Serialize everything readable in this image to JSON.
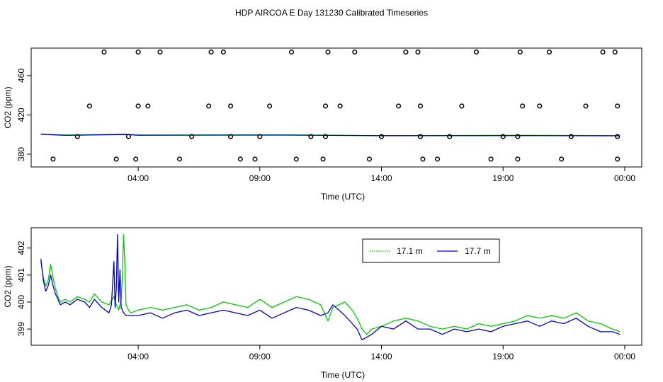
{
  "title": "HDP AIRCOA E  Day 131230  Calibrated Timeseries",
  "colors": {
    "green": "#00cc00",
    "blue": "#0000cc",
    "points": "#000000"
  },
  "chart_data": [
    {
      "type": "scatter",
      "xlabel": "Time (UTC)",
      "ylabel": "CO2 (ppm)",
      "x_ticks": [
        "04:00",
        "09:00",
        "14:00",
        "19:00",
        "00:00"
      ],
      "x_tick_hours": [
        4,
        9,
        14,
        19,
        24
      ],
      "y_ticks": [
        380,
        420,
        460
      ],
      "xlim": [
        -0.4,
        24.7
      ],
      "ylim": [
        367,
        488
      ],
      "grid": false,
      "points": [
        [
          0.5,
          375
        ],
        [
          1.5,
          398
        ],
        [
          2.0,
          429
        ],
        [
          2.6,
          484
        ],
        [
          3.1,
          375
        ],
        [
          3.6,
          398
        ],
        [
          4.0,
          429
        ],
        [
          4.0,
          484
        ],
        [
          3.9,
          375
        ],
        [
          4.9,
          484
        ],
        [
          4.4,
          429
        ],
        [
          5.7,
          375
        ],
        [
          6.2,
          398
        ],
        [
          6.9,
          429
        ],
        [
          7.0,
          484
        ],
        [
          7.5,
          484
        ],
        [
          7.8,
          429
        ],
        [
          7.8,
          398
        ],
        [
          8.2,
          375
        ],
        [
          8.8,
          375
        ],
        [
          9.4,
          429
        ],
        [
          9.0,
          398
        ],
        [
          10.3,
          484
        ],
        [
          10.5,
          375
        ],
        [
          11.1,
          398
        ],
        [
          11.6,
          375
        ],
        [
          11.7,
          398
        ],
        [
          11.7,
          429
        ],
        [
          11.8,
          484
        ],
        [
          12.3,
          429
        ],
        [
          12.9,
          484
        ],
        [
          13.5,
          375
        ],
        [
          14.0,
          398
        ],
        [
          14.7,
          429
        ],
        [
          15.0,
          484
        ],
        [
          15.5,
          484
        ],
        [
          15.7,
          375
        ],
        [
          15.6,
          398
        ],
        [
          15.6,
          429
        ],
        [
          16.3,
          375
        ],
        [
          16.8,
          398
        ],
        [
          17.3,
          429
        ],
        [
          17.9,
          484
        ],
        [
          18.5,
          375
        ],
        [
          19.0,
          398
        ],
        [
          19.6,
          375
        ],
        [
          19.6,
          398
        ],
        [
          19.7,
          484
        ],
        [
          19.8,
          429
        ],
        [
          20.5,
          429
        ],
        [
          20.9,
          484
        ],
        [
          21.4,
          375
        ],
        [
          21.8,
          398
        ],
        [
          22.4,
          429
        ],
        [
          23.1,
          484
        ],
        [
          23.6,
          484
        ],
        [
          23.7,
          429
        ],
        [
          23.7,
          398
        ],
        [
          23.7,
          375
        ]
      ],
      "series": [
        {
          "color": "#00cc00",
          "x": [
            0.0,
            1.0,
            3.5,
            4.0,
            10.0,
            14.0,
            20.0,
            23.8
          ],
          "y": [
            400.5,
            399.5,
            400.5,
            399.5,
            399.8,
            398.8,
            399.2,
            398.9
          ]
        },
        {
          "color": "#0000cc",
          "x": [
            0.0,
            1.0,
            3.5,
            4.0,
            10.0,
            14.0,
            20.0,
            23.8
          ],
          "y": [
            400.3,
            399.2,
            400.0,
            399.3,
            399.4,
            398.8,
            398.9,
            398.7
          ]
        }
      ]
    },
    {
      "type": "line",
      "xlabel": "Time (UTC)",
      "ylabel": "CO2 (ppm)",
      "x_ticks": [
        "04:00",
        "09:00",
        "14:00",
        "19:00",
        "00:00"
      ],
      "x_tick_hours": [
        4,
        9,
        14,
        19,
        24
      ],
      "y_ticks": [
        399,
        400,
        401,
        402
      ],
      "xlim": [
        -0.4,
        24.7
      ],
      "ylim": [
        398.4,
        402.75
      ],
      "grid": false,
      "legend": "top-right",
      "series": [
        {
          "name": "17.1 m",
          "color": "#00cc00",
          "x": [
            0.0,
            0.1,
            0.2,
            0.3,
            0.4,
            0.5,
            0.6,
            0.7,
            0.8,
            1.0,
            1.2,
            1.5,
            1.8,
            2.0,
            2.2,
            2.5,
            2.8,
            3.0,
            3.1,
            3.2,
            3.3,
            3.35,
            3.4,
            3.45,
            3.5,
            3.6,
            3.7,
            4.0,
            4.5,
            5.0,
            5.5,
            6.0,
            6.5,
            7.0,
            7.5,
            8.0,
            8.5,
            9.0,
            9.5,
            10.0,
            10.5,
            11.0,
            11.5,
            11.8,
            12.0,
            12.5,
            12.8,
            13.0,
            13.2,
            13.4,
            13.6,
            14.0,
            14.5,
            15.0,
            15.5,
            16.0,
            16.5,
            17.0,
            17.5,
            18.0,
            18.5,
            19.0,
            19.5,
            20.0,
            20.5,
            21.0,
            21.5,
            22.0,
            22.5,
            23.0,
            23.5,
            23.8
          ],
          "y": [
            401.5,
            400.9,
            400.6,
            400.8,
            401.4,
            400.9,
            400.5,
            400.2,
            400.0,
            400.1,
            400.0,
            400.2,
            400.1,
            400.0,
            400.3,
            400.0,
            399.9,
            400.2,
            399.9,
            399.7,
            400.1,
            401.0,
            402.5,
            401.5,
            399.9,
            399.7,
            399.6,
            399.7,
            399.8,
            399.7,
            399.8,
            399.9,
            399.7,
            399.8,
            400.0,
            399.9,
            399.8,
            400.1,
            399.8,
            400.0,
            400.2,
            400.1,
            399.9,
            399.3,
            399.8,
            400.0,
            399.7,
            399.4,
            399.0,
            398.8,
            399.0,
            399.1,
            399.3,
            399.4,
            399.3,
            399.1,
            399.0,
            399.1,
            399.0,
            399.2,
            399.1,
            399.2,
            399.3,
            399.5,
            399.4,
            399.5,
            399.4,
            399.6,
            399.3,
            399.2,
            399.0,
            398.9
          ]
        },
        {
          "name": "17.7 m",
          "color": "#0000cc",
          "x": [
            0.0,
            0.1,
            0.2,
            0.3,
            0.4,
            0.5,
            0.6,
            0.7,
            0.8,
            1.0,
            1.2,
            1.5,
            1.8,
            2.0,
            2.2,
            2.5,
            2.8,
            2.9,
            3.0,
            3.05,
            3.1,
            3.15,
            3.2,
            3.25,
            3.3,
            3.4,
            3.5,
            4.0,
            4.5,
            5.0,
            5.5,
            6.0,
            6.5,
            7.0,
            7.5,
            8.0,
            8.5,
            9.0,
            9.5,
            10.0,
            10.5,
            11.0,
            11.5,
            11.8,
            12.0,
            12.5,
            12.8,
            13.0,
            13.2,
            13.4,
            13.6,
            14.0,
            14.5,
            15.0,
            15.5,
            16.0,
            16.5,
            17.0,
            17.5,
            18.0,
            18.5,
            19.0,
            19.5,
            20.0,
            20.5,
            21.0,
            21.5,
            22.0,
            22.5,
            23.0,
            23.5,
            23.8
          ],
          "y": [
            401.6,
            400.8,
            400.4,
            400.6,
            401.0,
            400.6,
            400.3,
            400.1,
            399.9,
            400.0,
            399.9,
            400.1,
            400.0,
            399.8,
            400.1,
            399.8,
            399.6,
            399.9,
            401.5,
            399.8,
            400.5,
            402.5,
            400.0,
            401.2,
            399.8,
            399.6,
            399.5,
            399.5,
            399.6,
            399.4,
            399.6,
            399.7,
            399.5,
            399.6,
            399.7,
            399.6,
            399.5,
            399.7,
            399.4,
            399.6,
            399.8,
            399.7,
            399.5,
            399.6,
            399.9,
            399.5,
            399.2,
            399.0,
            398.6,
            398.7,
            398.8,
            399.1,
            399.0,
            399.3,
            399.0,
            399.0,
            398.8,
            399.0,
            398.9,
            399.0,
            398.9,
            399.1,
            399.2,
            399.3,
            399.1,
            399.3,
            399.2,
            399.4,
            399.1,
            398.9,
            398.9,
            398.8
          ]
        }
      ]
    }
  ]
}
